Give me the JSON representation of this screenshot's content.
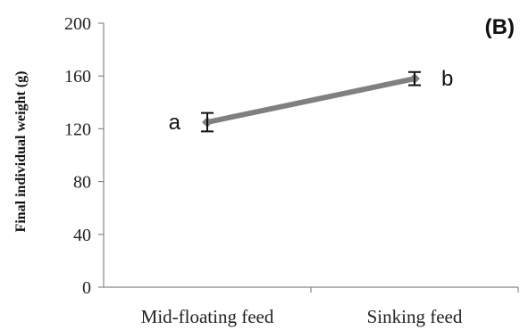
{
  "chart_data": {
    "type": "line",
    "panel_label": "(B)",
    "xlabel": "",
    "ylabel": "Final individual weight (g)",
    "ylim": [
      0,
      200
    ],
    "yticks": [
      0,
      40,
      80,
      120,
      160,
      200
    ],
    "categories": [
      "Mid-floating feed",
      "Sinking feed"
    ],
    "series": [
      {
        "values": [
          125,
          158
        ],
        "error": [
          7,
          5
        ],
        "color": "#808080"
      }
    ],
    "significance_letters": [
      "a",
      "b"
    ],
    "grid": false,
    "legend": "none"
  }
}
